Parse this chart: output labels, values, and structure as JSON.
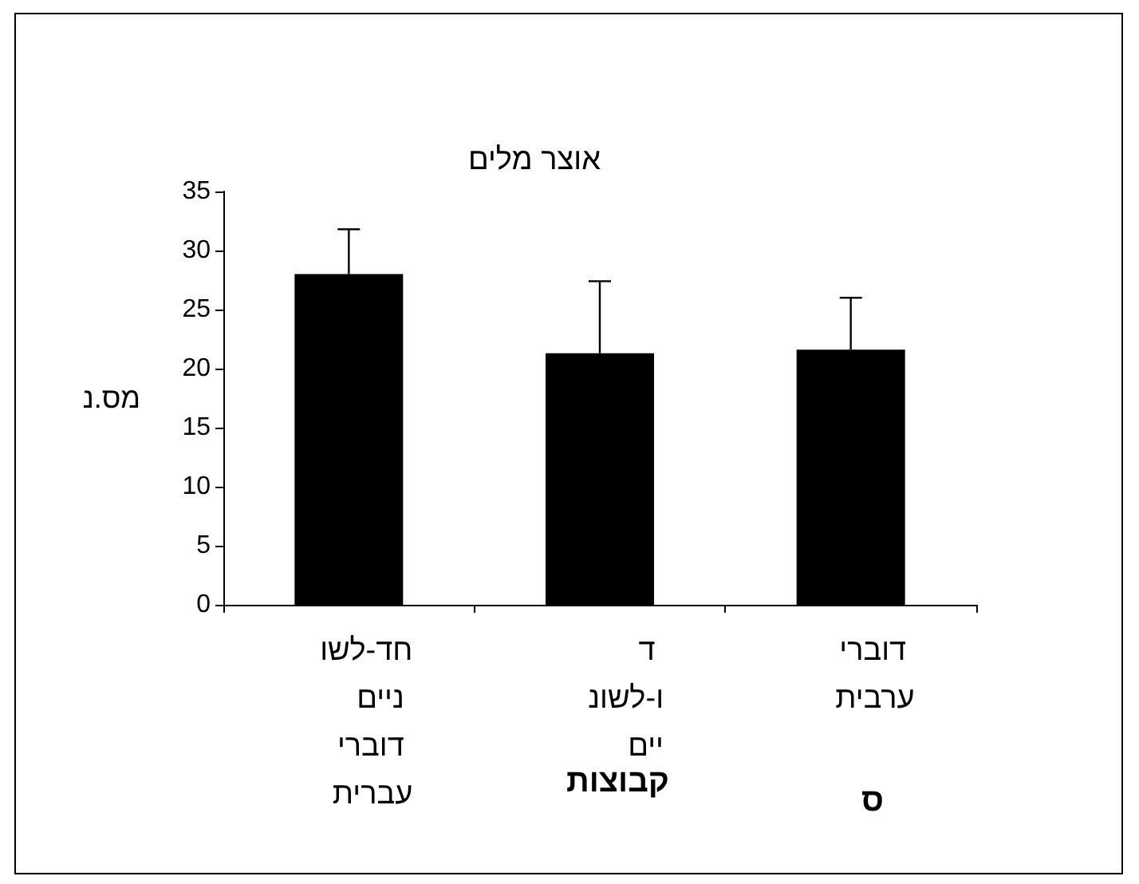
{
  "chart_data": {
    "type": "bar",
    "title": "אוצר מלים",
    "ylabel": "מס.נ",
    "xlabel": "קבוצות",
    "categories": [
      "חד-לשוניים דוברי עברית",
      "ד ו-לשוניים",
      "דוברי ערבית"
    ],
    "values": [
      28,
      21.3,
      21.6
    ],
    "color": "#000000",
    "errors": [
      [
        28,
        31.8
      ],
      [
        21.3,
        27.4
      ],
      [
        21.6,
        26
      ]
    ],
    "ylim": [
      0,
      35
    ],
    "yticks": [
      0,
      5,
      10,
      15,
      20,
      25,
      30,
      35
    ],
    "grid": false,
    "annotations": [
      "ס"
    ]
  }
}
